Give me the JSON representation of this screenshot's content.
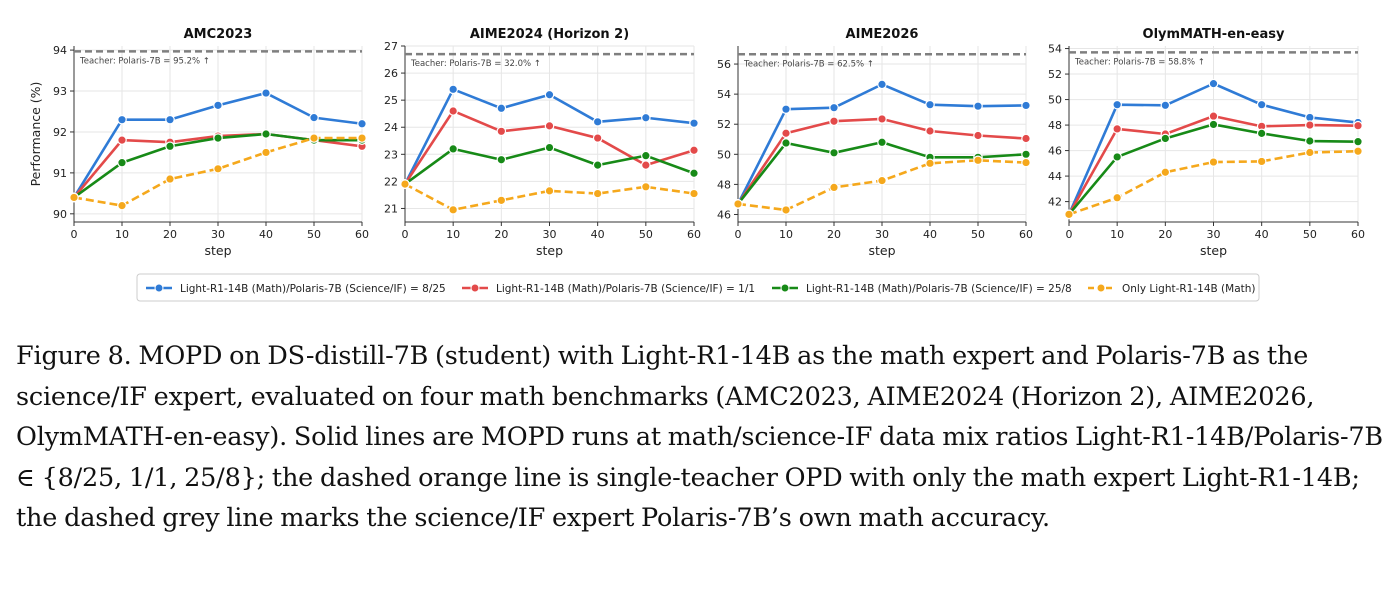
{
  "caption": "Figure 8. MOPD on DS-distill-7B (student) with Light-R1-14B as the math expert and Polaris-7B as the science/IF expert, evaluated on four math benchmarks (AMC2023, AIME2024 (Horizon 2), AIME2026, OlymMATH-en-easy). Solid lines are MOPD runs at math/science-IF data mix ratios Light-R1-14B/Polaris-7B ∈ {8/25, 1/1, 25/8}; the dashed orange line is single-teacher OPD with only the math expert Light-R1-14B; the dashed grey line marks the science/IF expert Polaris-7B’s own math accuracy.",
  "colors": {
    "s1": "#2f7bd6",
    "s2": "#e34a4a",
    "s3": "#178a17",
    "s4": "#f5a81c",
    "teacher": "#7f7f7f",
    "grid": "#e6e6e6"
  },
  "legend": [
    "Light-R1-14B (Math)/Polaris-7B (Science/IF) = 8/25",
    "Light-R1-14B (Math)/Polaris-7B (Science/IF) = 1/1",
    "Light-R1-14B (Math)/Polaris-7B (Science/IF) = 25/8",
    "Only Light-R1-14B (Math)"
  ],
  "chart_data": [
    {
      "type": "line",
      "title": "AMC2023",
      "xlabel": "step",
      "ylabel": "Performance (%)",
      "x": [
        0,
        10,
        20,
        30,
        40,
        50,
        60
      ],
      "ylim": [
        89.8,
        94.1
      ],
      "yticks": [
        90,
        91,
        92,
        93,
        94
      ],
      "teacher": {
        "label": "Teacher: Polaris-7B = 95.2% ↑",
        "value": 93.97
      },
      "series": [
        {
          "name": "Light-R1-14B (Math)/Polaris-7B (Science/IF) = 8/25",
          "values": [
            90.4,
            92.3,
            92.3,
            92.65,
            92.95,
            92.35,
            92.2
          ]
        },
        {
          "name": "Light-R1-14B (Math)/Polaris-7B (Science/IF) = 1/1",
          "values": [
            90.4,
            91.8,
            91.75,
            91.9,
            91.95,
            91.8,
            91.65
          ]
        },
        {
          "name": "Light-R1-14B (Math)/Polaris-7B (Science/IF) = 25/8",
          "values": [
            90.4,
            91.25,
            91.65,
            91.85,
            91.95,
            91.8,
            91.8
          ]
        },
        {
          "name": "Only Light-R1-14B (Math)",
          "values": [
            90.4,
            90.2,
            90.85,
            91.1,
            91.5,
            91.85,
            91.85
          ]
        }
      ]
    },
    {
      "type": "line",
      "title": "AIME2024 (Horizon 2)",
      "xlabel": "step",
      "ylabel": "",
      "x": [
        0,
        10,
        20,
        30,
        40,
        50,
        60
      ],
      "ylim": [
        20.5,
        27
      ],
      "yticks": [
        21,
        22,
        23,
        24,
        25,
        26,
        27
      ],
      "teacher": {
        "label": "Teacher: Polaris-7B = 32.0% ↑",
        "value": 26.7
      },
      "series": [
        {
          "name": "Light-R1-14B (Math)/Polaris-7B (Science/IF) = 8/25",
          "values": [
            21.9,
            25.4,
            24.7,
            25.2,
            24.2,
            24.35,
            24.15
          ]
        },
        {
          "name": "Light-R1-14B (Math)/Polaris-7B (Science/IF) = 1/1",
          "values": [
            21.9,
            24.6,
            23.85,
            24.05,
            23.6,
            22.6,
            23.15
          ]
        },
        {
          "name": "Light-R1-14B (Math)/Polaris-7B (Science/IF) = 25/8",
          "values": [
            21.9,
            23.2,
            22.8,
            23.25,
            22.6,
            22.95,
            22.3
          ]
        },
        {
          "name": "Only Light-R1-14B (Math)",
          "values": [
            21.9,
            20.95,
            21.3,
            21.65,
            21.55,
            21.8,
            21.55
          ]
        }
      ]
    },
    {
      "type": "line",
      "title": "AIME2026",
      "xlabel": "step",
      "ylabel": "",
      "x": [
        0,
        10,
        20,
        30,
        40,
        50,
        60
      ],
      "ylim": [
        45.5,
        57.2
      ],
      "yticks": [
        46,
        48,
        50,
        52,
        54,
        56
      ],
      "teacher": {
        "label": "Teacher: Polaris-7B = 62.5% ↑",
        "value": 56.65
      },
      "series": [
        {
          "name": "Light-R1-14B (Math)/Polaris-7B (Science/IF) = 8/25",
          "values": [
            46.7,
            53.0,
            53.1,
            54.65,
            53.3,
            53.2,
            53.25
          ]
        },
        {
          "name": "Light-R1-14B (Math)/Polaris-7B (Science/IF) = 1/1",
          "values": [
            46.7,
            51.4,
            52.2,
            52.35,
            51.55,
            51.25,
            51.05
          ]
        },
        {
          "name": "Light-R1-14B (Math)/Polaris-7B (Science/IF) = 25/8",
          "values": [
            46.7,
            50.75,
            50.1,
            50.8,
            49.8,
            49.8,
            50.0
          ]
        },
        {
          "name": "Only Light-R1-14B (Math)",
          "values": [
            46.7,
            46.3,
            47.8,
            48.25,
            49.4,
            49.6,
            49.45
          ]
        }
      ]
    },
    {
      "type": "line",
      "title": "OlymMATH-en-easy",
      "xlabel": "step",
      "ylabel": "",
      "x": [
        0,
        10,
        20,
        30,
        40,
        50,
        60
      ],
      "ylim": [
        40.4,
        54.2
      ],
      "yticks": [
        42,
        44,
        46,
        48,
        50,
        52,
        54
      ],
      "teacher": {
        "label": "Teacher: Polaris-7B = 58.8% ↑",
        "value": 53.7
      },
      "series": [
        {
          "name": "Light-R1-14B (Math)/Polaris-7B (Science/IF) = 8/25",
          "values": [
            41.0,
            49.6,
            49.55,
            51.25,
            49.6,
            48.6,
            48.2
          ]
        },
        {
          "name": "Light-R1-14B (Math)/Polaris-7B (Science/IF) = 1/1",
          "values": [
            41.0,
            47.7,
            47.3,
            48.7,
            47.9,
            48.0,
            47.95
          ]
        },
        {
          "name": "Light-R1-14B (Math)/Polaris-7B (Science/IF) = 25/8",
          "values": [
            41.0,
            45.5,
            46.95,
            48.05,
            47.35,
            46.75,
            46.7
          ]
        },
        {
          "name": "Only Light-R1-14B (Math)",
          "values": [
            41.0,
            42.3,
            44.3,
            45.1,
            45.15,
            45.85,
            45.95
          ]
        }
      ]
    }
  ]
}
